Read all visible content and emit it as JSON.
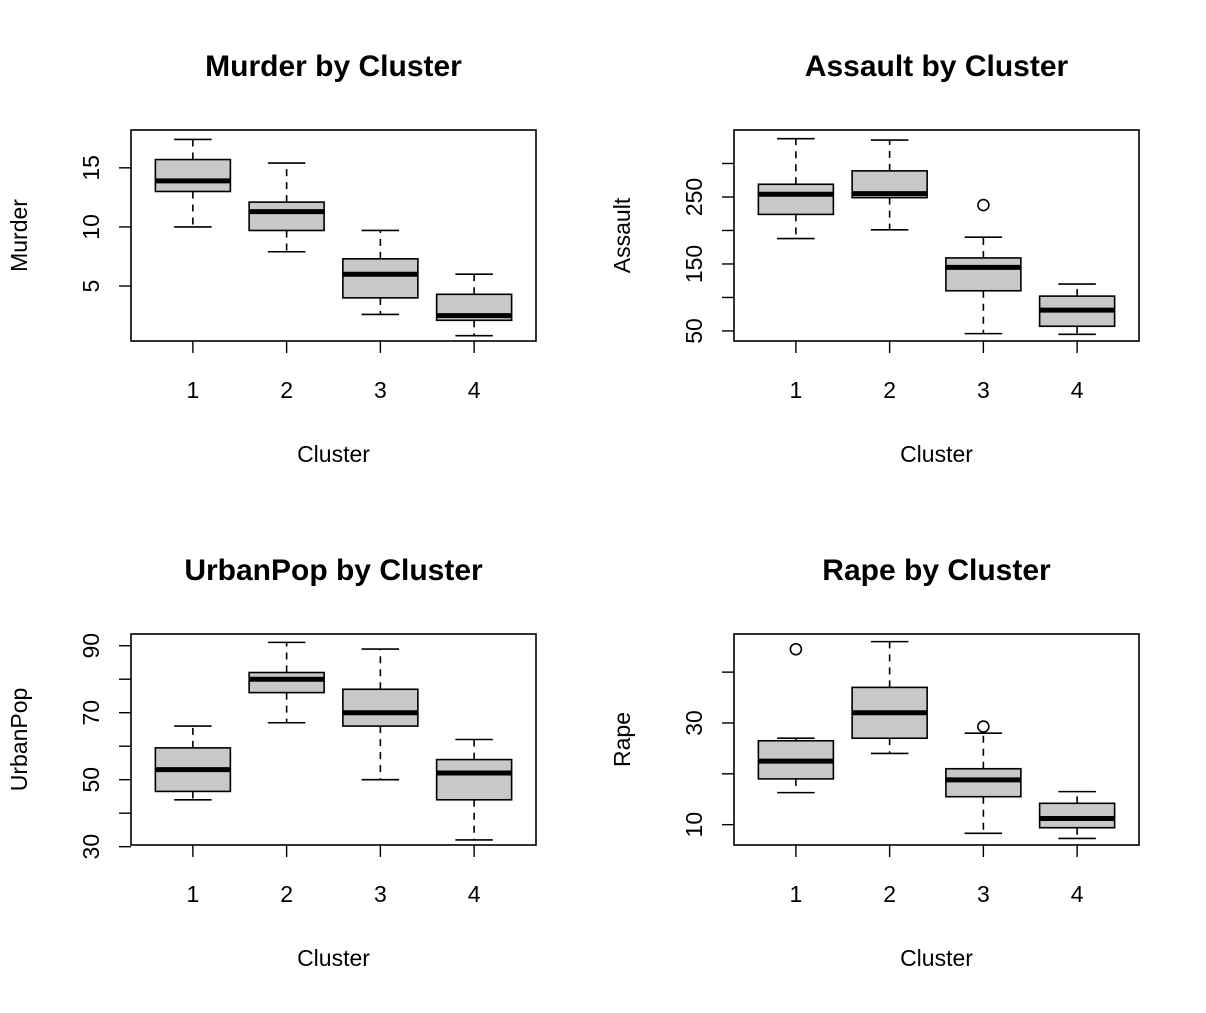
{
  "chart_data": [
    {
      "type": "box",
      "title": "Murder by Cluster",
      "xlabel": "Cluster",
      "ylabel": "Murder",
      "categories": [
        "1",
        "2",
        "3",
        "4"
      ],
      "ylim": [
        0.35,
        18.2
      ],
      "yticks": [
        5,
        10,
        15
      ],
      "boxes": [
        {
          "min": 10.0,
          "q1": 13.0,
          "median": 13.9,
          "q3": 15.7,
          "max": 17.4,
          "outliers": []
        },
        {
          "min": 7.9,
          "q1": 9.7,
          "median": 11.3,
          "q3": 12.1,
          "max": 15.4,
          "outliers": []
        },
        {
          "min": 2.6,
          "q1": 4.0,
          "median": 6.0,
          "q3": 7.3,
          "max": 9.7,
          "outliers": []
        },
        {
          "min": 0.8,
          "q1": 2.1,
          "median": 2.5,
          "q3": 4.3,
          "max": 6.0,
          "outliers": []
        }
      ]
    },
    {
      "type": "box",
      "title": "Assault by Cluster",
      "xlabel": "Cluster",
      "ylabel": "Assault",
      "categories": [
        "1",
        "2",
        "3",
        "4"
      ],
      "ylim": [
        35,
        350
      ],
      "yticks": [
        50,
        100,
        150,
        200,
        250,
        300
      ],
      "ytick_labels": [
        "50",
        "",
        "150",
        "",
        "250",
        ""
      ],
      "boxes": [
        {
          "min": 188,
          "q1": 224,
          "median": 254,
          "q3": 269,
          "max": 337,
          "outliers": []
        },
        {
          "min": 201,
          "q1": 249,
          "median": 255,
          "q3": 289,
          "max": 335,
          "outliers": []
        },
        {
          "min": 46,
          "q1": 110,
          "median": 145,
          "q3": 159,
          "max": 190,
          "outliers": [
            238
          ]
        },
        {
          "min": 45,
          "q1": 57,
          "median": 81,
          "q3": 102,
          "max": 120,
          "outliers": []
        }
      ]
    },
    {
      "type": "box",
      "title": "UrbanPop by Cluster",
      "xlabel": "Cluster",
      "ylabel": "UrbanPop",
      "categories": [
        "1",
        "2",
        "3",
        "4"
      ],
      "ylim": [
        30.5,
        93.5
      ],
      "yticks": [
        30,
        40,
        50,
        60,
        70,
        80,
        90
      ],
      "ytick_labels": [
        "30",
        "",
        "50",
        "",
        "70",
        "",
        "90"
      ],
      "boxes": [
        {
          "min": 44,
          "q1": 46.5,
          "median": 53,
          "q3": 59.5,
          "max": 66,
          "outliers": []
        },
        {
          "min": 67,
          "q1": 76,
          "median": 80,
          "q3": 82,
          "max": 91,
          "outliers": []
        },
        {
          "min": 50,
          "q1": 66,
          "median": 70,
          "q3": 77,
          "max": 89,
          "outliers": []
        },
        {
          "min": 32,
          "q1": 44,
          "median": 52,
          "q3": 56,
          "max": 62,
          "outliers": []
        }
      ]
    },
    {
      "type": "box",
      "title": "Rape by Cluster",
      "xlabel": "Cluster",
      "ylabel": "Rape",
      "categories": [
        "1",
        "2",
        "3",
        "4"
      ],
      "ylim": [
        6,
        47.5
      ],
      "yticks": [
        10,
        20,
        30,
        40
      ],
      "ytick_labels": [
        "10",
        "",
        "30",
        ""
      ],
      "boxes": [
        {
          "min": 16.3,
          "q1": 19.0,
          "median": 22.5,
          "q3": 26.5,
          "max": 27.0,
          "outliers": [
            44.5
          ]
        },
        {
          "min": 24.0,
          "q1": 27.0,
          "median": 32.0,
          "q3": 37.0,
          "max": 46.0,
          "outliers": []
        },
        {
          "min": 8.3,
          "q1": 15.5,
          "median": 18.8,
          "q3": 21.0,
          "max": 28.0,
          "outliers": [
            29.3
          ]
        },
        {
          "min": 7.3,
          "q1": 9.4,
          "median": 11.2,
          "q3": 14.2,
          "max": 16.5,
          "outliers": []
        }
      ]
    }
  ]
}
